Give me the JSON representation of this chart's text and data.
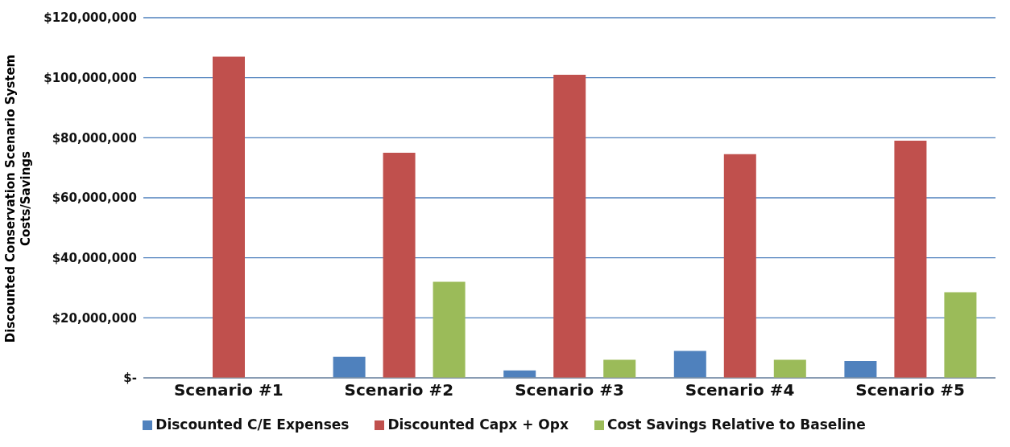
{
  "chart_data": {
    "type": "bar",
    "ylabel": "Discounted Conservation Scenario System Costs/Savings",
    "categories": [
      "Scenario #1",
      "Scenario #2",
      "Scenario #3",
      "Scenario #4",
      "Scenario #5"
    ],
    "series": [
      {
        "name": "Discounted C/E Expenses",
        "color": "#4f81bd",
        "values": [
          0,
          7000000,
          2500000,
          9000000,
          5600000
        ]
      },
      {
        "name": "Discounted Capx + Opx",
        "color": "#c0504d",
        "values": [
          107000000,
          75000000,
          101000000,
          74500000,
          79000000
        ]
      },
      {
        "name": "Cost Savings Relative to Baseline",
        "color": "#9bbb59",
        "values": [
          0,
          32000000,
          6000000,
          6000000,
          28500000
        ]
      }
    ],
    "ylim": [
      0,
      120000000
    ],
    "yticks": [
      {
        "value": 0,
        "label": "$-"
      },
      {
        "value": 20000000,
        "label": "$20,000,000"
      },
      {
        "value": 40000000,
        "label": "$40,000,000"
      },
      {
        "value": 60000000,
        "label": "$60,000,000"
      },
      {
        "value": 80000000,
        "label": "$80,000,000"
      },
      {
        "value": 100000000,
        "label": "$100,000,000"
      },
      {
        "value": 120000000,
        "label": "$120,000,000"
      }
    ],
    "grid": "y",
    "legend": "bottom"
  }
}
